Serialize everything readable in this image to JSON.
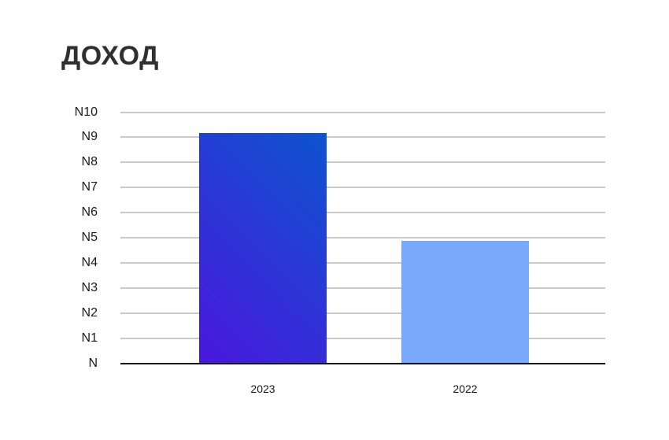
{
  "page": {
    "background": "#ffffff"
  },
  "chart_data": {
    "type": "bar",
    "title": "ДОХОД",
    "categories": [
      "2023",
      "2022"
    ],
    "values": [
      9.15,
      4.85
    ],
    "ylim": [
      0,
      10
    ],
    "ytick_labels": [
      "N",
      "N1",
      "N2",
      "N3",
      "N4",
      "N5",
      "N6",
      "N7",
      "N8",
      "N9",
      "N10"
    ],
    "xlabel": "",
    "ylabel": "",
    "grid": true,
    "legend_position": "none",
    "colors": {
      "bar_2023_gradient_start": "#4a17dd",
      "bar_2023_gradient_end": "#0d54cf",
      "bar_2022": "#7aa8fa",
      "gridline": "#c9c9c9",
      "axis": "#141414",
      "tick_text": "#1a1a1a",
      "title_text": "#303030"
    }
  }
}
